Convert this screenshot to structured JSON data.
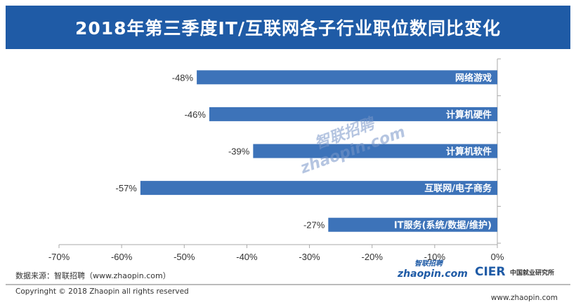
{
  "chart_data": {
    "type": "bar",
    "orientation": "horizontal",
    "title": "2018年第三季度IT/互联网各子行业职位数同比变化",
    "categories": [
      "网络游戏",
      "计算机硬件",
      "计算机软件",
      "互联网/电子商务",
      "IT服务(系统/数据/维护)"
    ],
    "values": [
      -48,
      -46,
      -39,
      -57,
      -27
    ],
    "data_labels": [
      "-48%",
      "-46%",
      "-39%",
      "-57%",
      "-27%"
    ],
    "xlim": [
      -70,
      0
    ],
    "xticks": [
      "-70%",
      "-60%",
      "-50%",
      "-40%",
      "-30%",
      "-20%",
      "-10%",
      "0%"
    ],
    "grid": false,
    "bar_color": "#3d73b9",
    "title_bg_color": "#1f5ba6"
  },
  "footer": {
    "source": "数据来源：智联招聘（www.zhaopin.com）",
    "copyright": "Copyringht © 2018 Zhaopin all rights reserved",
    "website": "www.zhaopin.com",
    "logo_zhaopin": "zhaopin.com",
    "logo_zhaopin_cn": "智联招聘",
    "logo_cier": "CIER",
    "logo_cier_cn": "中国就业研究所",
    "watermark": "智联招聘 zhaopin.com"
  }
}
